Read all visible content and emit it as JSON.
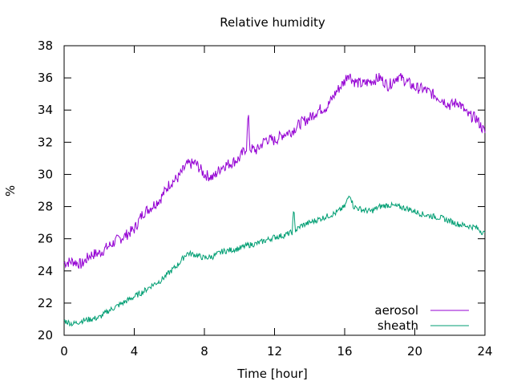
{
  "chart_data": {
    "type": "line",
    "title": "Relative humidity",
    "xlabel": "Time [hour]",
    "ylabel": "%",
    "xlim": [
      0,
      24
    ],
    "ylim": [
      20,
      38
    ],
    "xticks": [
      "0",
      "4",
      "8",
      "12",
      "16",
      "20",
      "24"
    ],
    "yticks": [
      "20",
      "22",
      "24",
      "26",
      "28",
      "30",
      "32",
      "34",
      "36",
      "38"
    ],
    "grid": false,
    "legend_position": "bottom-right",
    "series": [
      {
        "name": "aerosol",
        "color": "#9400d3",
        "x": [
          0,
          0.5,
          1,
          1.5,
          2,
          2.5,
          3,
          3.5,
          4,
          4.5,
          5,
          5.5,
          6,
          6.5,
          7,
          7.5,
          8,
          8.5,
          9,
          9.5,
          10,
          10.4,
          10.5,
          10.6,
          11,
          11.5,
          12,
          12.5,
          13,
          13.5,
          14,
          14.5,
          15,
          15.5,
          16,
          16.2,
          16.5,
          17,
          17.5,
          18,
          18.5,
          19,
          19.5,
          20,
          20.5,
          21,
          21.5,
          22,
          22.5,
          23,
          23.5,
          24
        ],
        "values": [
          24.5,
          24.6,
          24.4,
          25,
          25.1,
          25.5,
          25.9,
          26.2,
          26.6,
          27.6,
          28,
          28.5,
          29.4,
          29.8,
          30.6,
          30.7,
          30,
          29.8,
          30.5,
          30.7,
          31,
          31.7,
          33.8,
          31.6,
          31.5,
          32.2,
          32.1,
          32.5,
          32.7,
          33.2,
          33.5,
          34,
          34.2,
          35.1,
          35.8,
          36.3,
          35.8,
          35.6,
          35.8,
          36,
          35.5,
          36.1,
          35.8,
          35.4,
          35.3,
          35,
          34.7,
          34.3,
          34.5,
          33.7,
          33.5,
          32.6
        ]
      },
      {
        "name": "sheath",
        "color": "#009e73",
        "x": [
          0,
          0.5,
          1,
          1.5,
          2,
          2.5,
          3,
          3.5,
          4,
          4.5,
          5,
          5.5,
          6,
          6.5,
          7,
          7.5,
          8,
          8.5,
          9,
          9.5,
          10,
          10.5,
          11,
          11.5,
          12,
          12.5,
          13,
          13.1,
          13.2,
          13.5,
          14,
          14.5,
          15,
          15.5,
          16,
          16.3,
          16.5,
          17,
          17.5,
          18,
          18.5,
          19,
          19.5,
          20,
          20.5,
          21,
          21.5,
          22,
          22.5,
          23,
          23.5,
          24
        ],
        "values": [
          20.9,
          20.7,
          20.9,
          21,
          21.1,
          21.5,
          21.8,
          22.1,
          22.4,
          22.7,
          23.1,
          23.4,
          23.9,
          24.4,
          25.1,
          25,
          24.8,
          24.9,
          25.2,
          25.3,
          25.4,
          25.6,
          25.7,
          25.9,
          26.1,
          26.2,
          26.4,
          27.8,
          26.5,
          26.8,
          27,
          27.2,
          27.4,
          27.6,
          28,
          28.8,
          28,
          27.8,
          27.7,
          28,
          28.1,
          28,
          27.9,
          27.7,
          27.5,
          27.4,
          27.3,
          27.1,
          26.9,
          26.8,
          26.7,
          26.3
        ]
      }
    ]
  }
}
